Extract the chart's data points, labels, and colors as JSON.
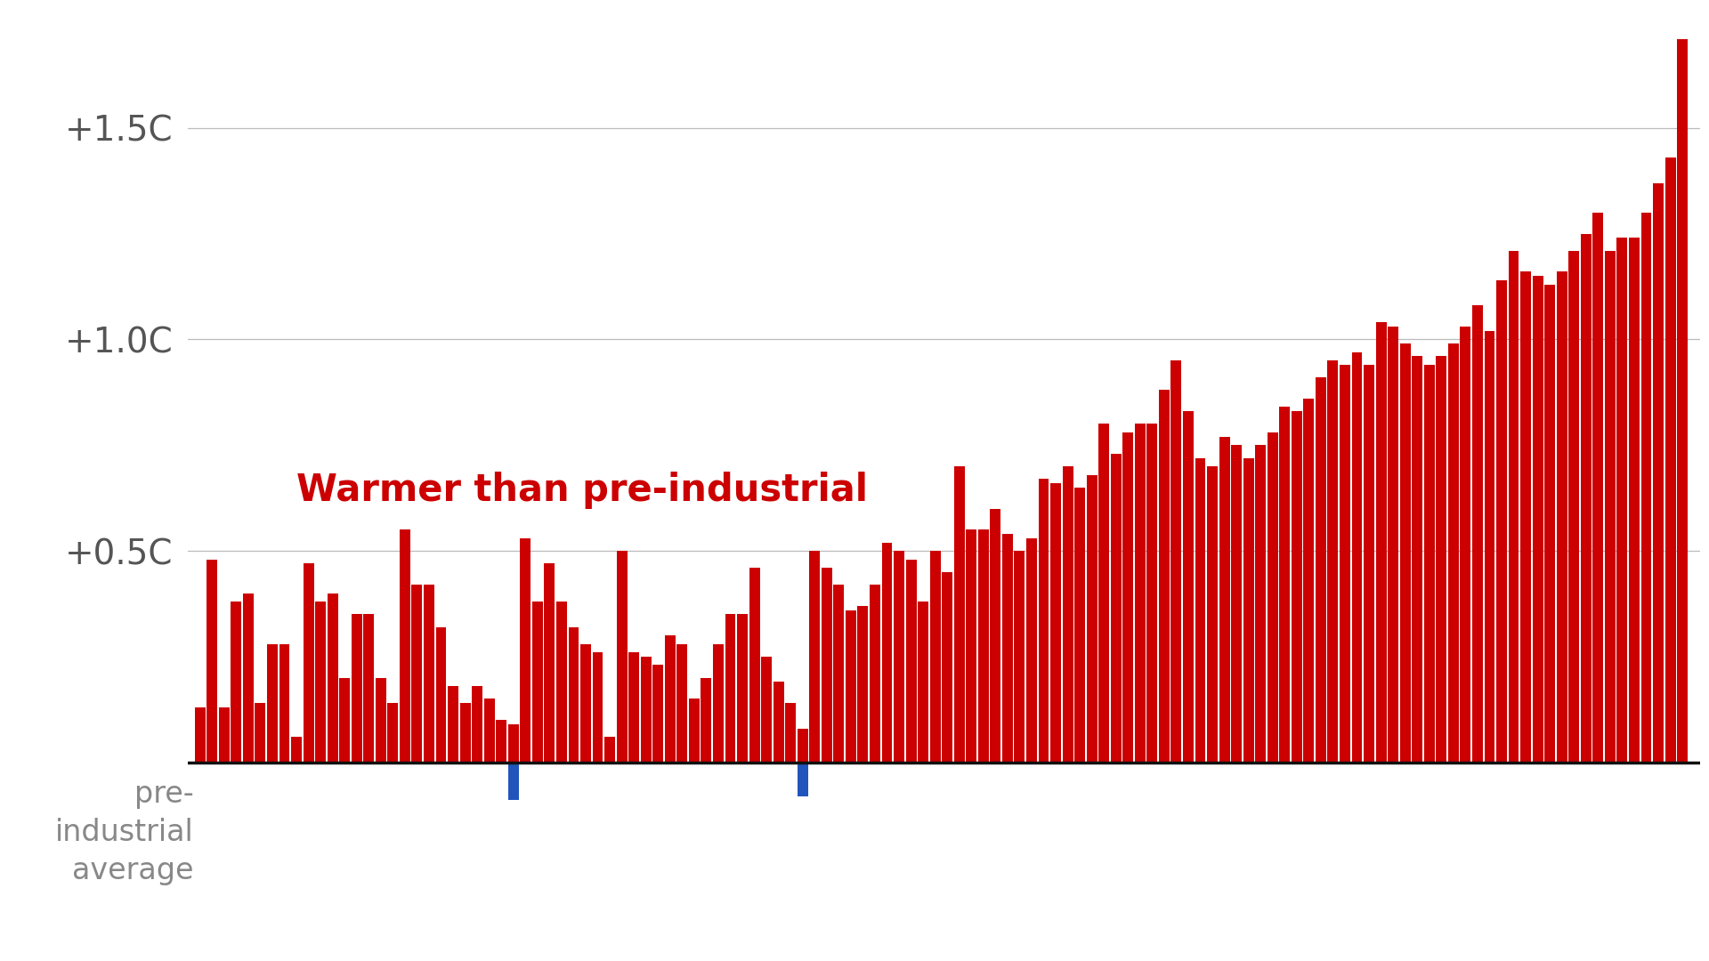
{
  "background_color": "#ffffff",
  "bar_color": "#cc0000",
  "blue_bar_color": "#2255bb",
  "annotation_text": "Warmer than pre-industrial",
  "annotation_color": "#cc0000",
  "annotation_fontsize": 30,
  "pre_industrial_label": "pre-\nindustrial\naverage",
  "pre_industrial_label_color": "#888888",
  "pre_industrial_label_fontsize": 24,
  "ytick_labels": [
    "+0.5C",
    "+1.0C",
    "+1.5C"
  ],
  "ytick_values": [
    0.5,
    1.0,
    1.5
  ],
  "ytick_fontsize": 28,
  "ytick_color": "#555555",
  "grid_color": "#bbbbbb",
  "baseline_color": "#111111",
  "baseline_lw": 2.5,
  "ylim": [
    -0.22,
    1.78
  ],
  "values": [
    0.13,
    0.48,
    0.13,
    0.38,
    0.4,
    0.14,
    0.28,
    0.28,
    0.06,
    0.47,
    0.38,
    0.4,
    0.2,
    0.35,
    0.35,
    0.2,
    0.14,
    0.55,
    0.42,
    0.42,
    0.32,
    0.18,
    0.14,
    0.18,
    0.15,
    0.1,
    0.09,
    0.53,
    0.38,
    0.47,
    0.38,
    0.32,
    0.28,
    0.26,
    0.06,
    0.5,
    0.26,
    0.25,
    0.23,
    0.3,
    0.28,
    0.15,
    0.2,
    0.28,
    0.35,
    0.35,
    0.46,
    0.25,
    0.19,
    0.14,
    0.08,
    0.5,
    0.46,
    0.42,
    0.36,
    0.37,
    0.42,
    0.52,
    0.5,
    0.48,
    0.38,
    0.5,
    0.45,
    0.7,
    0.55,
    0.55,
    0.6,
    0.54,
    0.5,
    0.53,
    0.67,
    0.66,
    0.7,
    0.65,
    0.68,
    0.8,
    0.73,
    0.78,
    0.8,
    0.8,
    0.88,
    0.95,
    0.83,
    0.72,
    0.7,
    0.77,
    0.75,
    0.72,
    0.75,
    0.78,
    0.84,
    0.83,
    0.86,
    0.91,
    0.95,
    0.94,
    0.97,
    0.94,
    1.04,
    1.03,
    0.99,
    0.96,
    0.94,
    0.96,
    0.99,
    1.03,
    1.08,
    1.02,
    1.14,
    1.21,
    1.16,
    1.15,
    1.13,
    1.16,
    1.21,
    1.25,
    1.3,
    1.21,
    1.24,
    1.24,
    1.3,
    1.37,
    1.43,
    1.71
  ],
  "blue_bar_indices": [
    26,
    50
  ],
  "blue_bar_values": [
    -0.09,
    -0.08
  ]
}
